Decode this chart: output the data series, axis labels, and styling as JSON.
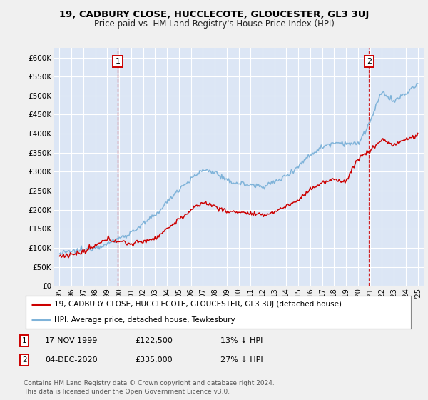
{
  "title": "19, CADBURY CLOSE, HUCCLECOTE, GLOUCESTER, GL3 3UJ",
  "subtitle": "Price paid vs. HM Land Registry's House Price Index (HPI)",
  "ylim": [
    0,
    625000
  ],
  "yticks": [
    0,
    50000,
    100000,
    150000,
    200000,
    250000,
    300000,
    350000,
    400000,
    450000,
    500000,
    550000,
    600000
  ],
  "ytick_labels": [
    "£0",
    "£50K",
    "£100K",
    "£150K",
    "£200K",
    "£250K",
    "£300K",
    "£350K",
    "£400K",
    "£450K",
    "£500K",
    "£550K",
    "£600K"
  ],
  "outer_bg": "#f0f0f0",
  "plot_bg_color": "#dce6f5",
  "grid_color": "#ffffff",
  "sale1": {
    "date_label": "17-NOV-1999",
    "price": 122500,
    "x": 1999.88,
    "label": "1",
    "pct": "13% ↓ HPI"
  },
  "sale2": {
    "date_label": "04-DEC-2020",
    "price": 335000,
    "x": 2020.92,
    "label": "2",
    "pct": "27% ↓ HPI"
  },
  "legend_line1": "19, CADBURY CLOSE, HUCCLECOTE, GLOUCESTER, GL3 3UJ (detached house)",
  "legend_line2": "HPI: Average price, detached house, Tewkesbury",
  "footnote": "Contains HM Land Registry data © Crown copyright and database right 2024.\nThis data is licensed under the Open Government Licence v3.0.",
  "red_color": "#cc0000",
  "blue_color": "#7fb3d9",
  "title_fontsize": 9.5,
  "subtitle_fontsize": 8.5
}
